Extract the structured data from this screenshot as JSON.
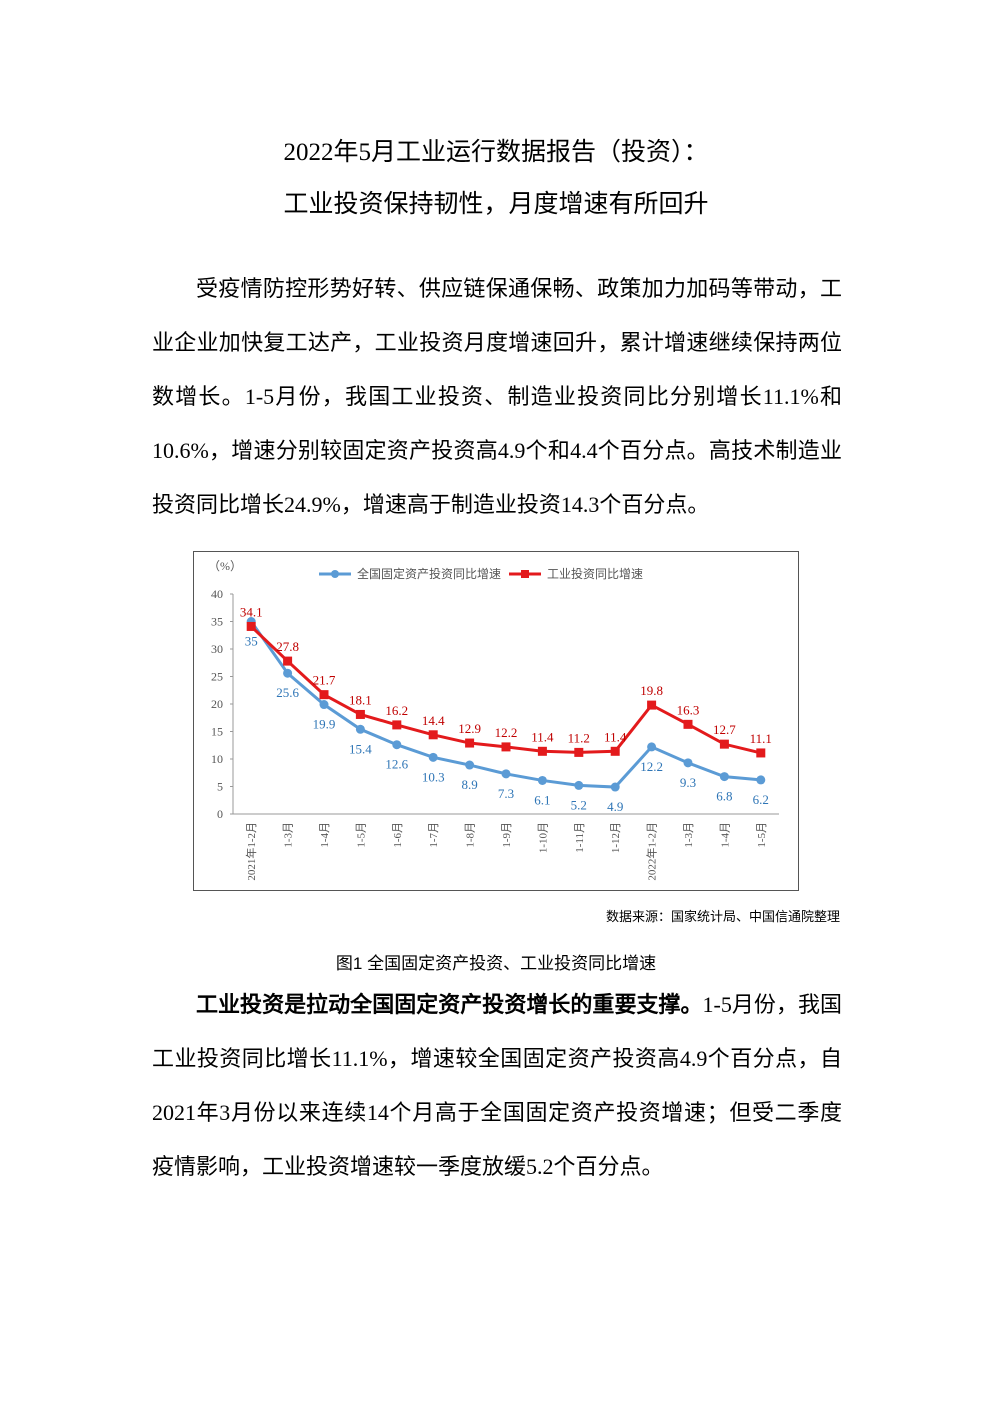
{
  "header": {
    "title_line1": "2022年5月工业运行数据报告（投资）：",
    "title_line2": "工业投资保持韧性，月度增速有所回升"
  },
  "paragraphs": [
    "受疫情防控形势好转、供应链保通保畅、政策加力加码等带动，工业企业加快复工达产，工业投资月度增速回升，累计增速继续保持两位数增长。1-5月份，我国工业投资、制造业投资同比分别增长11.1%和10.6%，增速分别较固定资产投资高4.9个和4.4个百分点。高技术制造业投资同比增长24.9%，增速高于制造业投资14.3个百分点。"
  ],
  "chart_data": {
    "type": "line",
    "y_label": "（%）",
    "categories": [
      "2021年1-2月",
      "1-3月",
      "1-4月",
      "1-5月",
      "1-6月",
      "1-7月",
      "1-8月",
      "1-9月",
      "1-10月",
      "1-11月",
      "1-12月",
      "2022年1-2月",
      "1-3月",
      "1-4月",
      "1-5月"
    ],
    "series": [
      {
        "name": "全国固定资产投资同比增速",
        "color": "#5b9bd5",
        "values": [
          35,
          25.6,
          19.9,
          15.4,
          12.6,
          10.3,
          8.9,
          7.3,
          6.1,
          5.2,
          4.9,
          12.2,
          9.3,
          6.8,
          6.2
        ]
      },
      {
        "name": "工业投资同比增速",
        "color": "#e31a1c",
        "values": [
          34.1,
          27.8,
          21.7,
          18.1,
          16.2,
          14.4,
          12.9,
          12.2,
          11.4,
          11.2,
          11.4,
          19.8,
          16.3,
          12.7,
          11.1
        ]
      }
    ],
    "ylim": [
      0,
      40
    ],
    "yticks": [
      0,
      5,
      10,
      15,
      20,
      25,
      30,
      35,
      40
    ]
  },
  "source": "数据来源：国家统计局、中国信通院整理",
  "caption": "图1 全国固定资产投资、工业投资同比增速",
  "paragraph2": {
    "bold": "工业投资是拉动全国固定资产投资增长的重要支撑。",
    "text": "1-5月份，我国工业投资同比增长11.1%，增速较全国固定资产投资高4.9个百分点，自2021年3月份以来连续14个月高于全国固定资产投资增速；但受二季度疫情影响，工业投资增速较一季度放缓5.2个百分点。"
  }
}
